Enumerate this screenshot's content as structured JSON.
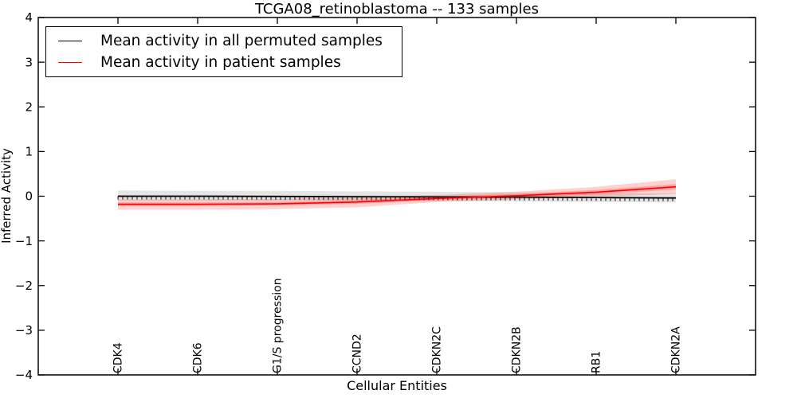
{
  "chart_data": {
    "type": "line",
    "title": "TCGA08_retinoblastoma -- 133 samples",
    "xlabel": "Cellular Entities",
    "ylabel": "Inferred Activity",
    "ylim": [
      -4,
      4
    ],
    "y_ticks": [
      4,
      3,
      2,
      1,
      0,
      -1,
      -2,
      -3,
      -4
    ],
    "y_tick_labels": [
      "4",
      "3",
      "2",
      "1",
      "0",
      "−1",
      "−2",
      "−3",
      "−4"
    ],
    "categories": [
      "CDK4",
      "CDK6",
      "G1/S progression",
      "CCND2",
      "CDKN2C",
      "CDKN2B",
      "RB1",
      "CDKN2A"
    ],
    "grid": false,
    "legend_position": "upper left",
    "series": [
      {
        "name": "Mean activity in all permuted samples",
        "color": "#000000",
        "band_color": "#000000",
        "band_fill_opacity": 0.1,
        "inner_band_fill_opacity": 0.07,
        "marker_style": "vertical-tick",
        "values": [
          0.0,
          0.0,
          -0.005,
          -0.01,
          -0.015,
          -0.02,
          -0.03,
          -0.04
        ],
        "band_upper": [
          0.13,
          0.12,
          0.12,
          0.11,
          0.1,
          0.09,
          0.07,
          0.06
        ],
        "band_lower": [
          -0.1,
          -0.1,
          -0.1,
          -0.11,
          -0.11,
          -0.12,
          -0.13,
          -0.14
        ],
        "inner_upper": [
          0.03,
          0.03,
          0.02,
          0.02,
          0.01,
          0.0,
          -0.01,
          -0.01
        ],
        "inner_lower": [
          -0.03,
          -0.03,
          -0.03,
          -0.04,
          -0.04,
          -0.05,
          -0.05,
          -0.07
        ]
      },
      {
        "name": "Mean activity in patient samples",
        "color": "#ff0000",
        "band_color": "#ff0000",
        "band_fill_opacity": 0.18,
        "inner_band_fill_opacity": 0.22,
        "marker_style": "none",
        "values": [
          -0.18,
          -0.18,
          -0.17,
          -0.13,
          -0.05,
          0.01,
          0.09,
          0.21
        ],
        "band_upper": [
          -0.07,
          -0.07,
          -0.06,
          -0.03,
          0.03,
          0.1,
          0.21,
          0.38
        ],
        "band_lower": [
          -0.3,
          -0.3,
          -0.29,
          -0.25,
          -0.13,
          -0.07,
          -0.01,
          0.05
        ],
        "inner_upper": [
          -0.14,
          -0.14,
          -0.13,
          -0.09,
          -0.01,
          0.05,
          0.14,
          0.27
        ],
        "inner_lower": [
          -0.22,
          -0.22,
          -0.21,
          -0.17,
          -0.09,
          -0.03,
          0.04,
          0.15
        ]
      }
    ]
  }
}
